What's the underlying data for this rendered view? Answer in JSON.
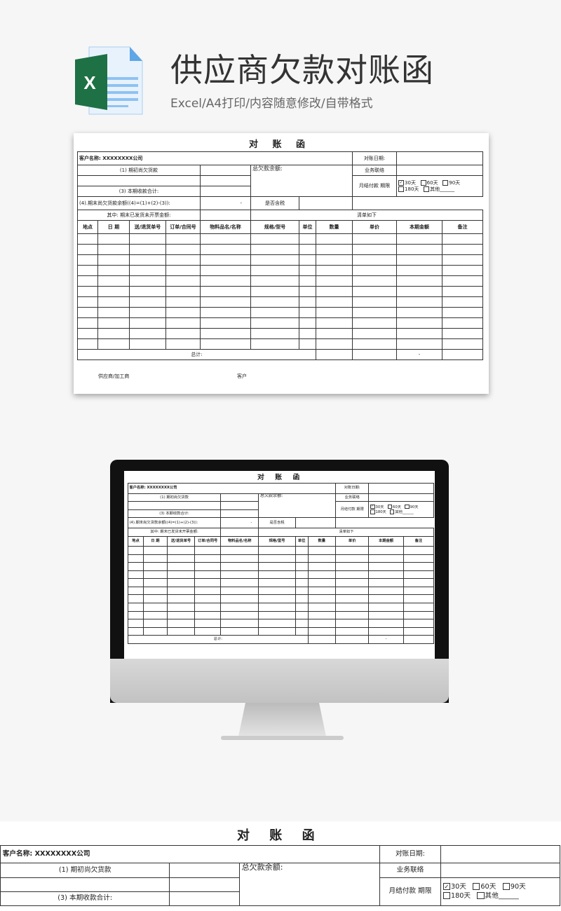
{
  "header": {
    "title": "供应商欠款对账函",
    "subtitle": "Excel/A4打印/内容随意修改/自带格式",
    "icon": "excel-file-icon",
    "icon_letter": "X",
    "brand_color": "#1e7145"
  },
  "sheet": {
    "title": "对 账 函",
    "customer": "客户名称: XXXXXXXX公司",
    "date_label": "对账日期:",
    "opening_label": "(1) 期初尚欠货款",
    "total_due_label": "总欠款余额:",
    "contact_label": "业务联络",
    "payment_label": "月结付款 期限",
    "options": [
      {
        "label": "30天",
        "checked": true
      },
      {
        "label": "60天",
        "checked": false
      },
      {
        "label": "90天",
        "checked": false
      },
      {
        "label": "180天",
        "checked": false
      },
      {
        "label": "其他______",
        "checked": false
      }
    ],
    "received_label": "(3) 本期收款合计:",
    "closing_label": "(4).期末尚欠货款余额((4)=(1)+(2)-(3)):",
    "closing_value": "-",
    "tax_label": "是否含税",
    "uninvoiced_label": "其中: 期末已发货未开票金额:",
    "list_label": "清单如下",
    "columns": [
      "地点",
      "日 期",
      "送/退货单号",
      "订单/合同号",
      "物料品名/名称",
      "规格/型号",
      "单位",
      "数量",
      "单价",
      "本期金额",
      "备注"
    ],
    "total_label": "总计:",
    "total_value": "-",
    "supplier_label": "供应商/加工商",
    "client_label": "客户"
  }
}
